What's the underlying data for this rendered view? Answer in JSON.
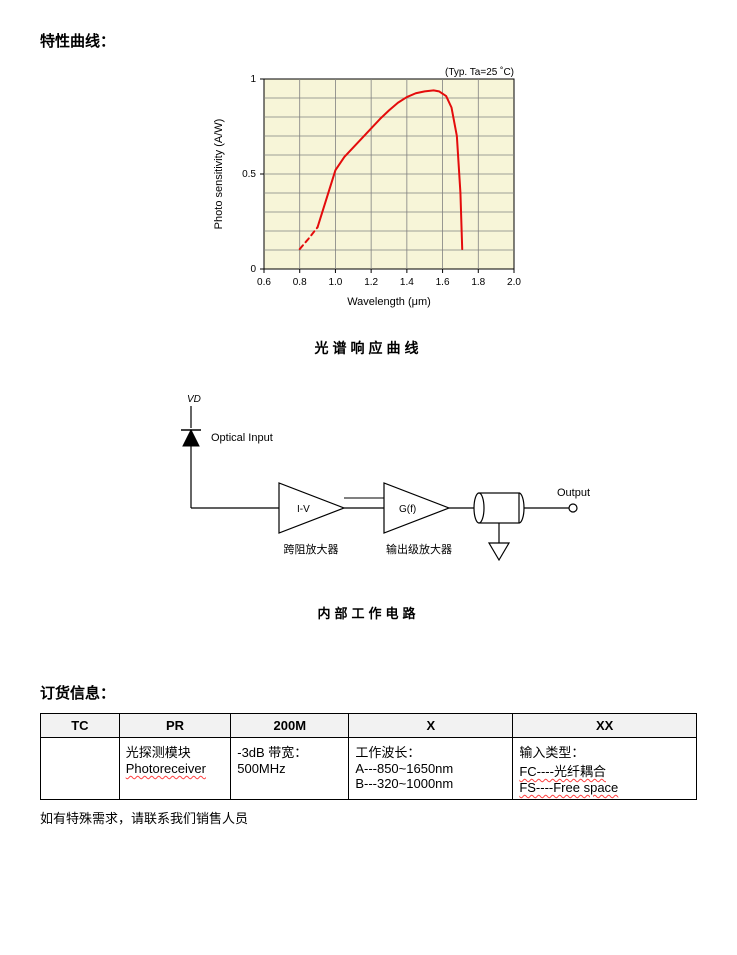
{
  "headings": {
    "curves": "特性曲线：",
    "order": "订货信息："
  },
  "spectral_chart": {
    "type": "line",
    "condition_label": "(Typ. Ta=25 ˚C)",
    "y_axis_label": "Photo sensitivity (A/W)",
    "x_axis_label": "Wavelength (μm)",
    "background_color": "#f7f5d8",
    "grid_color": "#808080",
    "border_color": "#000000",
    "line_color": "#e40c0c",
    "line_width": 2,
    "xlim": [
      0.6,
      2.0
    ],
    "ylim": [
      0,
      1
    ],
    "xticks": [
      0.6,
      0.8,
      1.0,
      1.2,
      1.4,
      1.6,
      1.8,
      2.0
    ],
    "yticks": [
      0,
      0.5,
      1
    ],
    "grid_x_count": 7,
    "grid_y_count": 10,
    "dashed_points": [
      {
        "x": 0.8,
        "y": 0.105
      },
      {
        "x": 0.85,
        "y": 0.16
      },
      {
        "x": 0.9,
        "y": 0.22
      }
    ],
    "solid_points": [
      {
        "x": 0.9,
        "y": 0.22
      },
      {
        "x": 0.95,
        "y": 0.37
      },
      {
        "x": 1.0,
        "y": 0.52
      },
      {
        "x": 1.05,
        "y": 0.59
      },
      {
        "x": 1.1,
        "y": 0.64
      },
      {
        "x": 1.15,
        "y": 0.69
      },
      {
        "x": 1.2,
        "y": 0.74
      },
      {
        "x": 1.25,
        "y": 0.79
      },
      {
        "x": 1.3,
        "y": 0.835
      },
      {
        "x": 1.35,
        "y": 0.875
      },
      {
        "x": 1.4,
        "y": 0.905
      },
      {
        "x": 1.45,
        "y": 0.925
      },
      {
        "x": 1.5,
        "y": 0.935
      },
      {
        "x": 1.55,
        "y": 0.94
      },
      {
        "x": 1.58,
        "y": 0.935
      },
      {
        "x": 1.62,
        "y": 0.91
      },
      {
        "x": 1.65,
        "y": 0.85
      },
      {
        "x": 1.68,
        "y": 0.7
      },
      {
        "x": 1.7,
        "y": 0.4
      },
      {
        "x": 1.71,
        "y": 0.105
      }
    ],
    "caption": "光谱响应曲线"
  },
  "circuit": {
    "type": "block-diagram",
    "line_color": "#000000",
    "labels": {
      "vd": "VD",
      "optical_input": "Optical Input",
      "tia_block": "I-V",
      "tia_caption": "跨阻放大器",
      "output_stage_block": "G(f)",
      "output_stage_caption": "输出级放大器",
      "output": "Output"
    },
    "caption": "内部工作电路"
  },
  "order_table": {
    "columns": [
      "TC",
      "PR",
      "200M",
      "X",
      "XX"
    ],
    "col_widths_pct": [
      12,
      17,
      18,
      25,
      28
    ],
    "rows": [
      {
        "tc": "",
        "pr_line1": "光探测模块",
        "pr_line2": "Photoreceiver",
        "m_line1": "-3dB 带宽：",
        "m_line2": "500MHz",
        "x_line1": "工作波长：",
        "x_line2": "A---850~1650nm",
        "x_line3": "B---320~1000nm",
        "xx_line1": "输入类型：",
        "xx_line2": "FC----光纤耦合",
        "xx_line3": "FS----Free space"
      }
    ]
  },
  "note": "如有特殊需求，请联系我们销售人员"
}
